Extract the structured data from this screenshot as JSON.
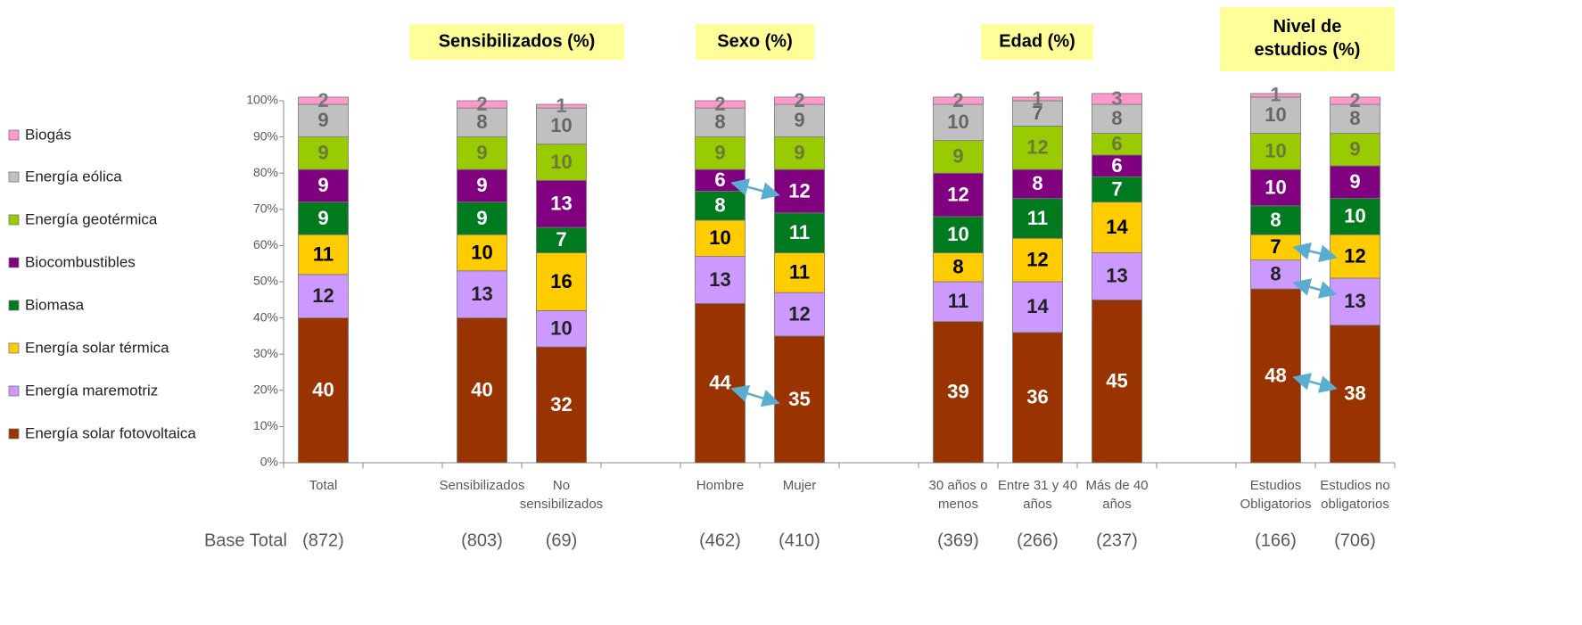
{
  "chart_data": {
    "type": "stacked_bar",
    "categories": [
      "Total",
      null,
      "Sensibilizados",
      "No\nsensibilizados",
      null,
      "Hombre",
      "Mujer",
      null,
      "30 años o\nmenos",
      "Entre 31 y 40\naños",
      "Más de 40\naños",
      null,
      "Estudios\nObligatorios",
      "Estudios no\nobligatorios"
    ],
    "base_label": "Base Total",
    "base": [
      "(872)",
      null,
      "(803)",
      "(69)",
      null,
      "(462)",
      "(410)",
      null,
      "(369)",
      "(266)",
      "(237)",
      null,
      "(166)",
      "(706)"
    ],
    "annotations": [
      "Sensibilizados (%)",
      "Sexo (%)",
      "Edad (%)",
      "Nivel de\nestudios (%)"
    ],
    "ylim": [
      0,
      100
    ],
    "yticks": [
      {
        "value": 0,
        "label": "0%"
      },
      {
        "value": 10,
        "label": "10%"
      },
      {
        "value": 20,
        "label": "20%"
      },
      {
        "value": 30,
        "label": "30%"
      },
      {
        "value": 40,
        "label": "40%"
      },
      {
        "value": 50,
        "label": "50%"
      },
      {
        "value": 60,
        "label": "60%"
      },
      {
        "value": 70,
        "label": "70%"
      },
      {
        "value": 80,
        "label": "80%"
      },
      {
        "value": 90,
        "label": "90%"
      },
      {
        "value": 100,
        "label": "100%"
      }
    ],
    "legend": "left",
    "series": [
      {
        "name": "Energía solar fotovoltaica",
        "color": "#993300",
        "label_color": "#ffffff",
        "values": [
          40,
          null,
          40,
          32,
          null,
          44,
          35,
          null,
          39,
          36,
          45,
          null,
          48,
          38
        ]
      },
      {
        "name": "Energía maremotriz",
        "color": "#cc99ff",
        "label_color": "#222222",
        "values": [
          12,
          null,
          13,
          10,
          null,
          13,
          12,
          null,
          11,
          14,
          13,
          null,
          8,
          13
        ]
      },
      {
        "name": "Energía solar térmica",
        "color": "#ffcc00",
        "label_color": "#000000",
        "values": [
          11,
          null,
          10,
          16,
          null,
          10,
          11,
          null,
          8,
          12,
          14,
          null,
          7,
          12
        ]
      },
      {
        "name": "Biomasa",
        "color": "#007a1f",
        "label_color": "#ffffff",
        "values": [
          9,
          null,
          9,
          7,
          null,
          8,
          11,
          null,
          10,
          11,
          7,
          null,
          8,
          10
        ]
      },
      {
        "name": "Biocombustibles",
        "color": "#800080",
        "label_color": "#ffffff",
        "values": [
          9,
          null,
          9,
          13,
          null,
          6,
          12,
          null,
          12,
          8,
          6,
          null,
          10,
          9
        ]
      },
      {
        "name": "Energía geotérmica",
        "color": "#99cc00",
        "label_color": "#6b7a3a",
        "values": [
          9,
          null,
          9,
          10,
          null,
          9,
          9,
          null,
          9,
          12,
          6,
          null,
          10,
          9
        ]
      },
      {
        "name": "Energía eólica",
        "color": "#c0c0c0",
        "label_color": "#666666",
        "values": [
          9,
          null,
          8,
          10,
          null,
          8,
          9,
          null,
          10,
          7,
          8,
          null,
          10,
          8
        ]
      },
      {
        "name": "Biogás",
        "color": "#ff99cc",
        "label_color": "#777777",
        "values": [
          2,
          null,
          2,
          1,
          null,
          2,
          2,
          null,
          2,
          1,
          3,
          null,
          1,
          2
        ]
      }
    ]
  }
}
